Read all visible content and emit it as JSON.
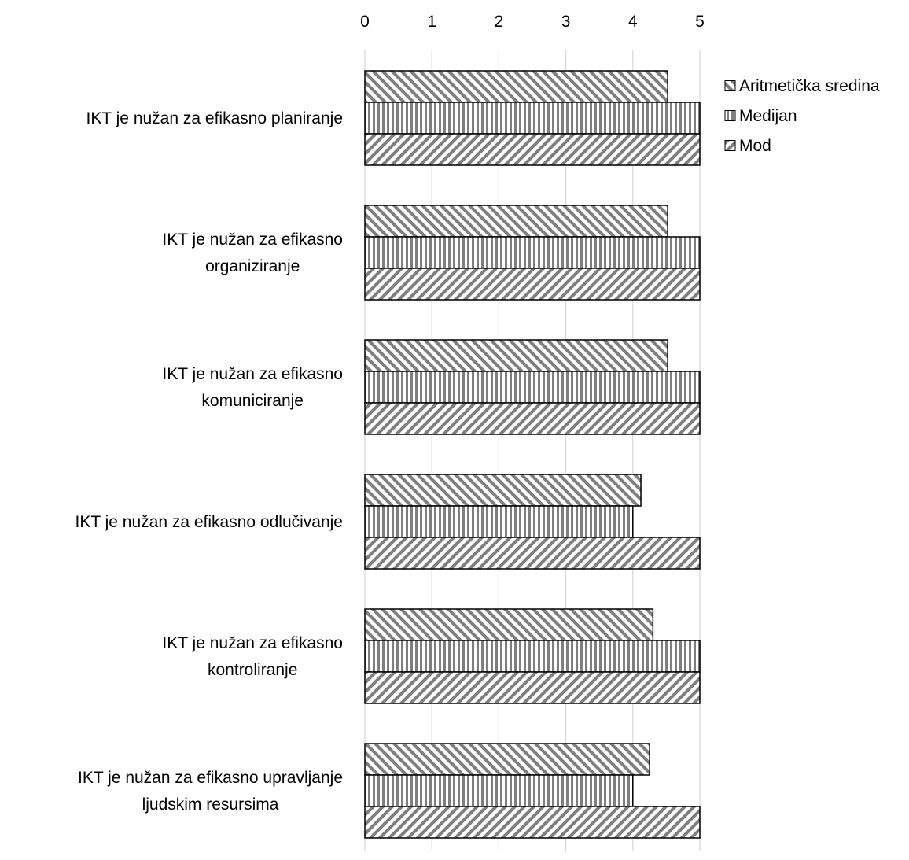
{
  "chart_data": {
    "type": "bar",
    "orientation": "horizontal",
    "categories": [
      [
        "IKT je nužan za efikasno planiranje"
      ],
      [
        "IKT je nužan za efikasno",
        "organiziranje"
      ],
      [
        "IKT je nužan za efikasno",
        "komuniciranje"
      ],
      [
        "IKT je nužan za efikasno odlučivanje"
      ],
      [
        "IKT je nužan za efikasno",
        "kontroliranje"
      ],
      [
        "IKT je nužan za efikasno upravljanje",
        "ljudskim resursima"
      ]
    ],
    "series": [
      {
        "name": "Aritmetička sredina",
        "values": [
          4.52,
          4.52,
          4.52,
          4.12,
          4.3,
          4.25
        ],
        "pattern": "backslash"
      },
      {
        "name": "Medijan",
        "values": [
          5,
          5,
          5,
          4,
          5,
          4
        ],
        "pattern": "vertical"
      },
      {
        "name": "Mod",
        "values": [
          5,
          5,
          5,
          5,
          5,
          5
        ],
        "pattern": "slash"
      }
    ],
    "xlim": [
      0,
      5
    ],
    "xticks": [
      0,
      1,
      2,
      3,
      4,
      5
    ],
    "axis_position": "top",
    "grid": true,
    "legend_position": "top-right",
    "title": "",
    "xlabel": "",
    "ylabel": "",
    "colors": {
      "pattern": "#7f7f7f",
      "outline": "#000000",
      "grid": "#d9d9d9",
      "fill": "#ffffff"
    }
  }
}
